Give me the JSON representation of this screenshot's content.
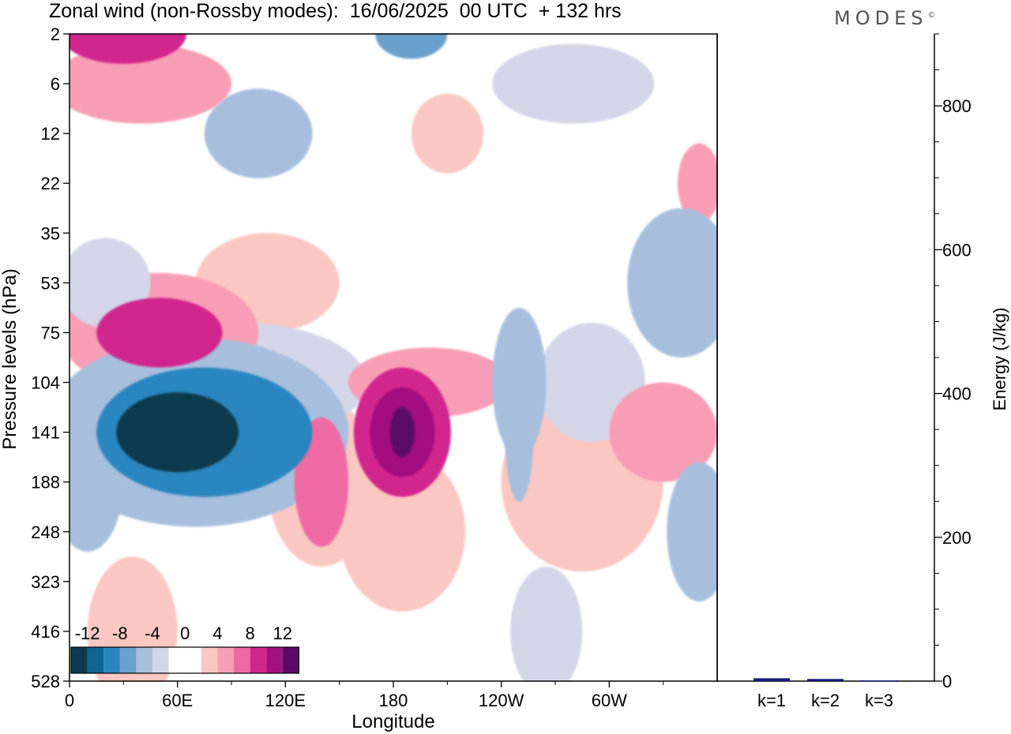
{
  "title": "Zonal wind (non-Rossby modes):  16/06/2025  00 UTC  + 132 hrs",
  "brand": "MODES",
  "brand_mark": "©",
  "colors": {
    "scale": [
      "#0d3a4e",
      "#0e6590",
      "#2b86c0",
      "#6ba1cc",
      "#a7bfdd",
      "#d4d6e8",
      "#ffffff",
      "#ffffff",
      "#fbc7c2",
      "#f79eb6",
      "#ef6aa5",
      "#d1268d",
      "#a30f7f",
      "#5a0a66"
    ]
  },
  "chart_data": [
    {
      "type": "heatmap",
      "title": "Zonal wind (non-Rossby modes):  16/06/2025  00 UTC  + 132 hrs",
      "xlabel": "Longitude",
      "ylabel": "Pressure levels (hPa)",
      "x_ticks": [
        "0",
        "60E",
        "120E",
        "180",
        "120W",
        "60W"
      ],
      "y_ticks": [
        "2",
        "6",
        "12",
        "22",
        "35",
        "53",
        "75",
        "104",
        "141",
        "188",
        "248",
        "323",
        "416",
        "528"
      ],
      "colorbar_labels": [
        "-12",
        "-8",
        "-4",
        "0",
        "4",
        "8",
        "12"
      ],
      "features": [
        {
          "lon": 60,
          "level": "141",
          "value": -14,
          "rx": 34,
          "ry": 0.8
        },
        {
          "lon": 75,
          "level": "141",
          "value": -10,
          "rx": 60,
          "ry": 1.3
        },
        {
          "lon": 70,
          "level": "141",
          "value": -6,
          "rx": 85,
          "ry": 1.9
        },
        {
          "lon": 95,
          "level": "104",
          "value": -4,
          "rx": 70,
          "ry": 1.2
        },
        {
          "lon": 65,
          "level": "248",
          "value": -2,
          "rx": 80,
          "ry": 0.9
        },
        {
          "lon": 10,
          "level": "188",
          "value": -6,
          "rx": 20,
          "ry": 1.4
        },
        {
          "lon": 185,
          "level": "141",
          "value": 14,
          "rx": 7,
          "ry": 0.5
        },
        {
          "lon": 185,
          "level": "141",
          "value": 10,
          "rx": 18,
          "ry": 0.9
        },
        {
          "lon": 185,
          "level": "141",
          "value": 8,
          "rx": 27,
          "ry": 1.3
        },
        {
          "lon": 200,
          "level": "104",
          "value": 5,
          "rx": 45,
          "ry": 0.7
        },
        {
          "lon": 140,
          "level": "188",
          "value": 6,
          "rx": 15,
          "ry": 1.3
        },
        {
          "lon": 140,
          "level": "188",
          "value": 3,
          "rx": 30,
          "ry": 1.7
        },
        {
          "lon": 185,
          "level": "248",
          "value": 2,
          "rx": 35,
          "ry": 1.6
        },
        {
          "lon": 50,
          "level": "75",
          "value": 8,
          "rx": 35,
          "ry": 0.7
        },
        {
          "lon": 50,
          "level": "75",
          "value": 4,
          "rx": 55,
          "ry": 1.2
        },
        {
          "lon": 110,
          "level": "53",
          "value": 2,
          "rx": 40,
          "ry": 1.0
        },
        {
          "lon": 20,
          "level": "53",
          "value": -4,
          "rx": 25,
          "ry": 0.9
        },
        {
          "lon": 105,
          "level": "12",
          "value": -5,
          "rx": 30,
          "ry": 0.9
        },
        {
          "lon": 105,
          "level": "12",
          "value": -2,
          "rx": 70,
          "ry": 1.4
        },
        {
          "lon": 40,
          "level": "6",
          "value": 5,
          "rx": 50,
          "ry": 0.8
        },
        {
          "lon": 30,
          "level": "2",
          "value": 8,
          "rx": 35,
          "ry": 0.6
        },
        {
          "lon": 190,
          "level": "2",
          "value": -8,
          "rx": 20,
          "ry": 0.5
        },
        {
          "lon": 210,
          "level": "12",
          "value": 3,
          "rx": 20,
          "ry": 0.8
        },
        {
          "lon": 250,
          "level": "104",
          "value": -5,
          "rx": 15,
          "ry": 1.5
        },
        {
          "lon": 250,
          "level": "141",
          "value": -6,
          "rx": 8,
          "ry": 1.4
        },
        {
          "lon": 285,
          "level": "188",
          "value": 3,
          "rx": 45,
          "ry": 1.8
        },
        {
          "lon": 290,
          "level": "104",
          "value": -4,
          "rx": 30,
          "ry": 1.2
        },
        {
          "lon": 340,
          "level": "53",
          "value": -5,
          "rx": 30,
          "ry": 1.5
        },
        {
          "lon": 350,
          "level": "248",
          "value": -6,
          "rx": 18,
          "ry": 1.4
        },
        {
          "lon": 330,
          "level": "141",
          "value": 4,
          "rx": 30,
          "ry": 1.0
        },
        {
          "lon": 265,
          "level": "416",
          "value": -4,
          "rx": 20,
          "ry": 1.3
        },
        {
          "lon": 115,
          "level": "416",
          "value": -2,
          "rx": 12,
          "ry": 1.5
        },
        {
          "lon": 35,
          "level": "416",
          "value": 3,
          "rx": 25,
          "ry": 1.5
        },
        {
          "lon": 350,
          "level": "22",
          "value": 4,
          "rx": 12,
          "ry": 0.8
        },
        {
          "lon": 280,
          "level": "6",
          "value": -3,
          "rx": 45,
          "ry": 0.8
        }
      ]
    },
    {
      "type": "bar",
      "categories": [
        "k=1",
        "k=2",
        "k=3"
      ],
      "values": [
        4,
        3,
        1
      ],
      "ylabel": "Energy (J/kg)",
      "y_ticks": [
        0,
        200,
        400,
        600,
        800
      ],
      "ylim": [
        0,
        900
      ],
      "bar_color": "#1a1a7a"
    }
  ]
}
